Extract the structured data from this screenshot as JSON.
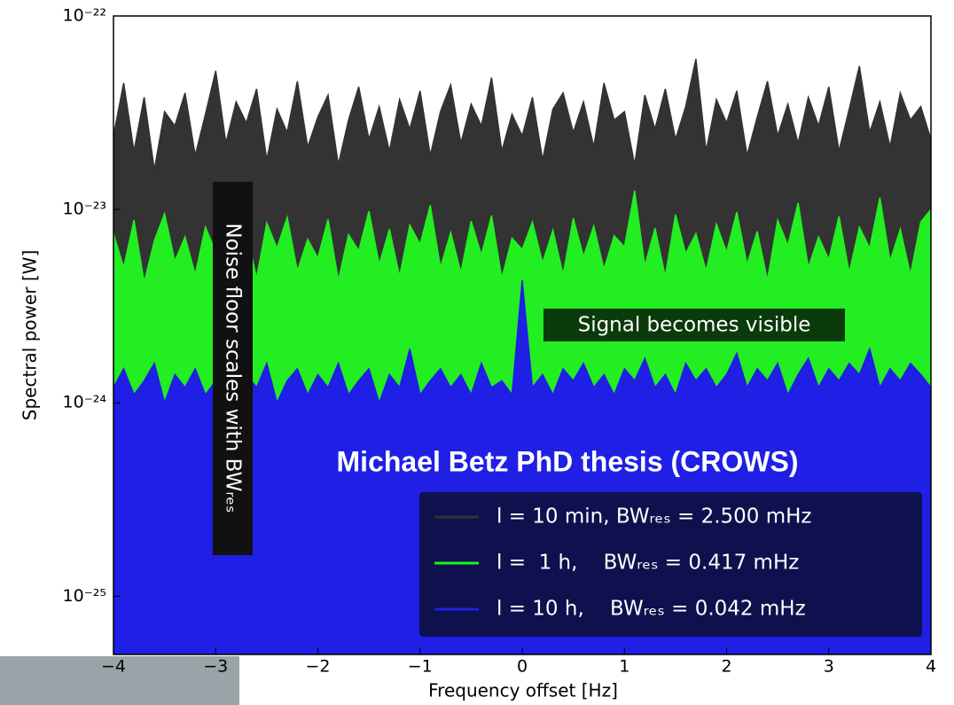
{
  "chart_data": {
    "type": "area",
    "xlabel": "Frequency offset [Hz]",
    "ylabel": "Spectral power [W]",
    "log_y": true,
    "legend": "lower right",
    "xlim": [
      -4,
      4
    ],
    "xticks": [
      {
        "value": -4,
        "label": "−4"
      },
      {
        "value": -3,
        "label": "−3"
      },
      {
        "value": -2,
        "label": "−2"
      },
      {
        "value": -1,
        "label": "−1"
      },
      0,
      1,
      2,
      3,
      4
    ],
    "ylim": [
      5e-26,
      1e-22
    ],
    "yticks": [
      {
        "value": 1e-25,
        "label": "10⁻²⁵"
      },
      {
        "value": 1e-24,
        "label": "10⁻²⁴"
      },
      {
        "value": 1e-23,
        "label": "10⁻²³"
      },
      {
        "value": 1e-22,
        "label": "10⁻²²"
      }
    ],
    "annotations": [
      "Noise floor scales with BWᵣₑₛ",
      "Signal becomes visible",
      "Michael Betz PhD thesis (CROWS)"
    ],
    "x": [
      -4,
      -3.9,
      -3.8,
      -3.7,
      -3.6,
      -3.5,
      -3.4,
      -3.3,
      -3.2,
      -3.1,
      -3,
      -2.9,
      -2.8,
      -2.7,
      -2.6,
      -2.5,
      -2.4,
      -2.3,
      -2.2,
      -2.1,
      -2,
      -1.9,
      -1.8,
      -1.7,
      -1.6,
      -1.5,
      -1.4,
      -1.3,
      -1.2,
      -1.1,
      -1,
      -0.9,
      -0.8,
      -0.7,
      -0.6,
      -0.5,
      -0.4,
      -0.3,
      -0.2,
      -0.1,
      0,
      0.1,
      0.2,
      0.3,
      0.4,
      0.5,
      0.6,
      0.7,
      0.8,
      0.9,
      1,
      1.1,
      1.2,
      1.3,
      1.4,
      1.5,
      1.6,
      1.7,
      1.8,
      1.9,
      2,
      2.1,
      2.2,
      2.3,
      2.4,
      2.5,
      2.6,
      2.7,
      2.8,
      2.9,
      3,
      3.1,
      3.2,
      3.3,
      3.4,
      3.5,
      3.6,
      3.7,
      3.8,
      3.9,
      4
    ],
    "series": [
      {
        "name": "l = 10 min, BWᵣₑₛ = 2.500 mHz",
        "color": "#333333",
        "values": [
          2.4e-23,
          4.5e-23,
          2e-23,
          3.8e-23,
          1.6e-23,
          3.2e-23,
          2.7e-23,
          4e-23,
          1.9e-23,
          3.1e-23,
          5.2e-23,
          2.2e-23,
          3.6e-23,
          2.8e-23,
          4.2e-23,
          1.8e-23,
          3.3e-23,
          2.5e-23,
          4.6e-23,
          2.1e-23,
          3e-23,
          3.9e-23,
          1.7e-23,
          2.9e-23,
          4.3e-23,
          2.3e-23,
          3.4e-23,
          2e-23,
          3.7e-23,
          2.6e-23,
          4.1e-23,
          1.9e-23,
          3.2e-23,
          4.4e-23,
          2.2e-23,
          3.5e-23,
          2.7e-23,
          4.8e-23,
          2e-23,
          3.1e-23,
          2.4e-23,
          3.8e-23,
          1.8e-23,
          3.3e-23,
          4e-23,
          2.5e-23,
          3.6e-23,
          2.1e-23,
          4.5e-23,
          2.9e-23,
          3.2e-23,
          1.7e-23,
          3.9e-23,
          2.6e-23,
          4.2e-23,
          2.3e-23,
          3.4e-23,
          6e-23,
          2e-23,
          3.7e-23,
          2.8e-23,
          4.1e-23,
          1.9e-23,
          3e-23,
          4.6e-23,
          2.4e-23,
          3.5e-23,
          2.2e-23,
          3.8e-23,
          2.7e-23,
          4.3e-23,
          2e-23,
          3.3e-23,
          5.5e-23,
          2.5e-23,
          3.6e-23,
          2.1e-23,
          4e-23,
          2.9e-23,
          3.4e-23,
          2.3e-23
        ]
      },
      {
        "name": "l =  1 h,    BWᵣₑₛ = 0.417 mHz",
        "color": "#22ee22",
        "values": [
          7.5e-24,
          5e-24,
          8.8e-24,
          4.2e-24,
          6.9e-24,
          9.5e-24,
          5.4e-24,
          7.2e-24,
          4.6e-24,
          8.1e-24,
          6e-24,
          1.02e-23,
          5.1e-24,
          7.7e-24,
          4.4e-24,
          8.5e-24,
          6.3e-24,
          9.1e-24,
          4.8e-24,
          7e-24,
          5.6e-24,
          8.9e-24,
          4.3e-24,
          7.4e-24,
          6.1e-24,
          9.8e-24,
          5.2e-24,
          7.9e-24,
          4.5e-24,
          8.3e-24,
          6.6e-24,
          1.05e-23,
          5e-24,
          7.6e-24,
          4.7e-24,
          8.7e-24,
          5.8e-24,
          9.3e-24,
          4.4e-24,
          7.1e-24,
          6.2e-24,
          8.6e-24,
          5.3e-24,
          7.8e-24,
          4.6e-24,
          9e-24,
          5.7e-24,
          8.2e-24,
          4.9e-24,
          7.3e-24,
          6.4e-24,
          1.25e-23,
          5.1e-24,
          8e-24,
          4.5e-24,
          9.4e-24,
          5.9e-24,
          7.5e-24,
          4.8e-24,
          8.4e-24,
          6e-24,
          9.7e-24,
          5.2e-24,
          7.7e-24,
          4.3e-24,
          8.8e-24,
          6.5e-24,
          1.08e-23,
          5e-24,
          7.2e-24,
          5.5e-24,
          9.2e-24,
          4.7e-24,
          8.1e-24,
          6.3e-24,
          1.15e-23,
          5.4e-24,
          7.9e-24,
          4.6e-24,
          8.6e-24,
          1e-23
        ]
      },
      {
        "name": "l = 10 h,    BWᵣₑₛ = 0.042 mHz",
        "color": "#1f1fe6",
        "values": [
          1.2e-24,
          1.5e-24,
          1.1e-24,
          1.3e-24,
          1.6e-24,
          1e-24,
          1.4e-24,
          1.2e-24,
          1.5e-24,
          1.1e-24,
          1.3e-24,
          1.7e-24,
          1.1e-24,
          1.4e-24,
          1.2e-24,
          1.6e-24,
          1e-24,
          1.3e-24,
          1.5e-24,
          1.1e-24,
          1.4e-24,
          1.2e-24,
          1.6e-24,
          1.1e-24,
          1.3e-24,
          1.5e-24,
          1e-24,
          1.4e-24,
          1.2e-24,
          1.9e-24,
          1.1e-24,
          1.3e-24,
          1.5e-24,
          1.2e-24,
          1.4e-24,
          1.1e-24,
          1.6e-24,
          1.2e-24,
          1.3e-24,
          1.1e-24,
          4.3e-24,
          1.2e-24,
          1.4e-24,
          1.1e-24,
          1.5e-24,
          1.3e-24,
          1.6e-24,
          1.2e-24,
          1.4e-24,
          1.1e-24,
          1.5e-24,
          1.3e-24,
          1.7e-24,
          1.2e-24,
          1.4e-24,
          1.1e-24,
          1.6e-24,
          1.3e-24,
          1.5e-24,
          1.2e-24,
          1.4e-24,
          1.8e-24,
          1.2e-24,
          1.5e-24,
          1.3e-24,
          1.6e-24,
          1.1e-24,
          1.4e-24,
          1.7e-24,
          1.2e-24,
          1.5e-24,
          1.3e-24,
          1.6e-24,
          1.4e-24,
          1.9e-24,
          1.2e-24,
          1.5e-24,
          1.3e-24,
          1.6e-24,
          1.4e-24,
          1.2e-24
        ]
      }
    ]
  }
}
